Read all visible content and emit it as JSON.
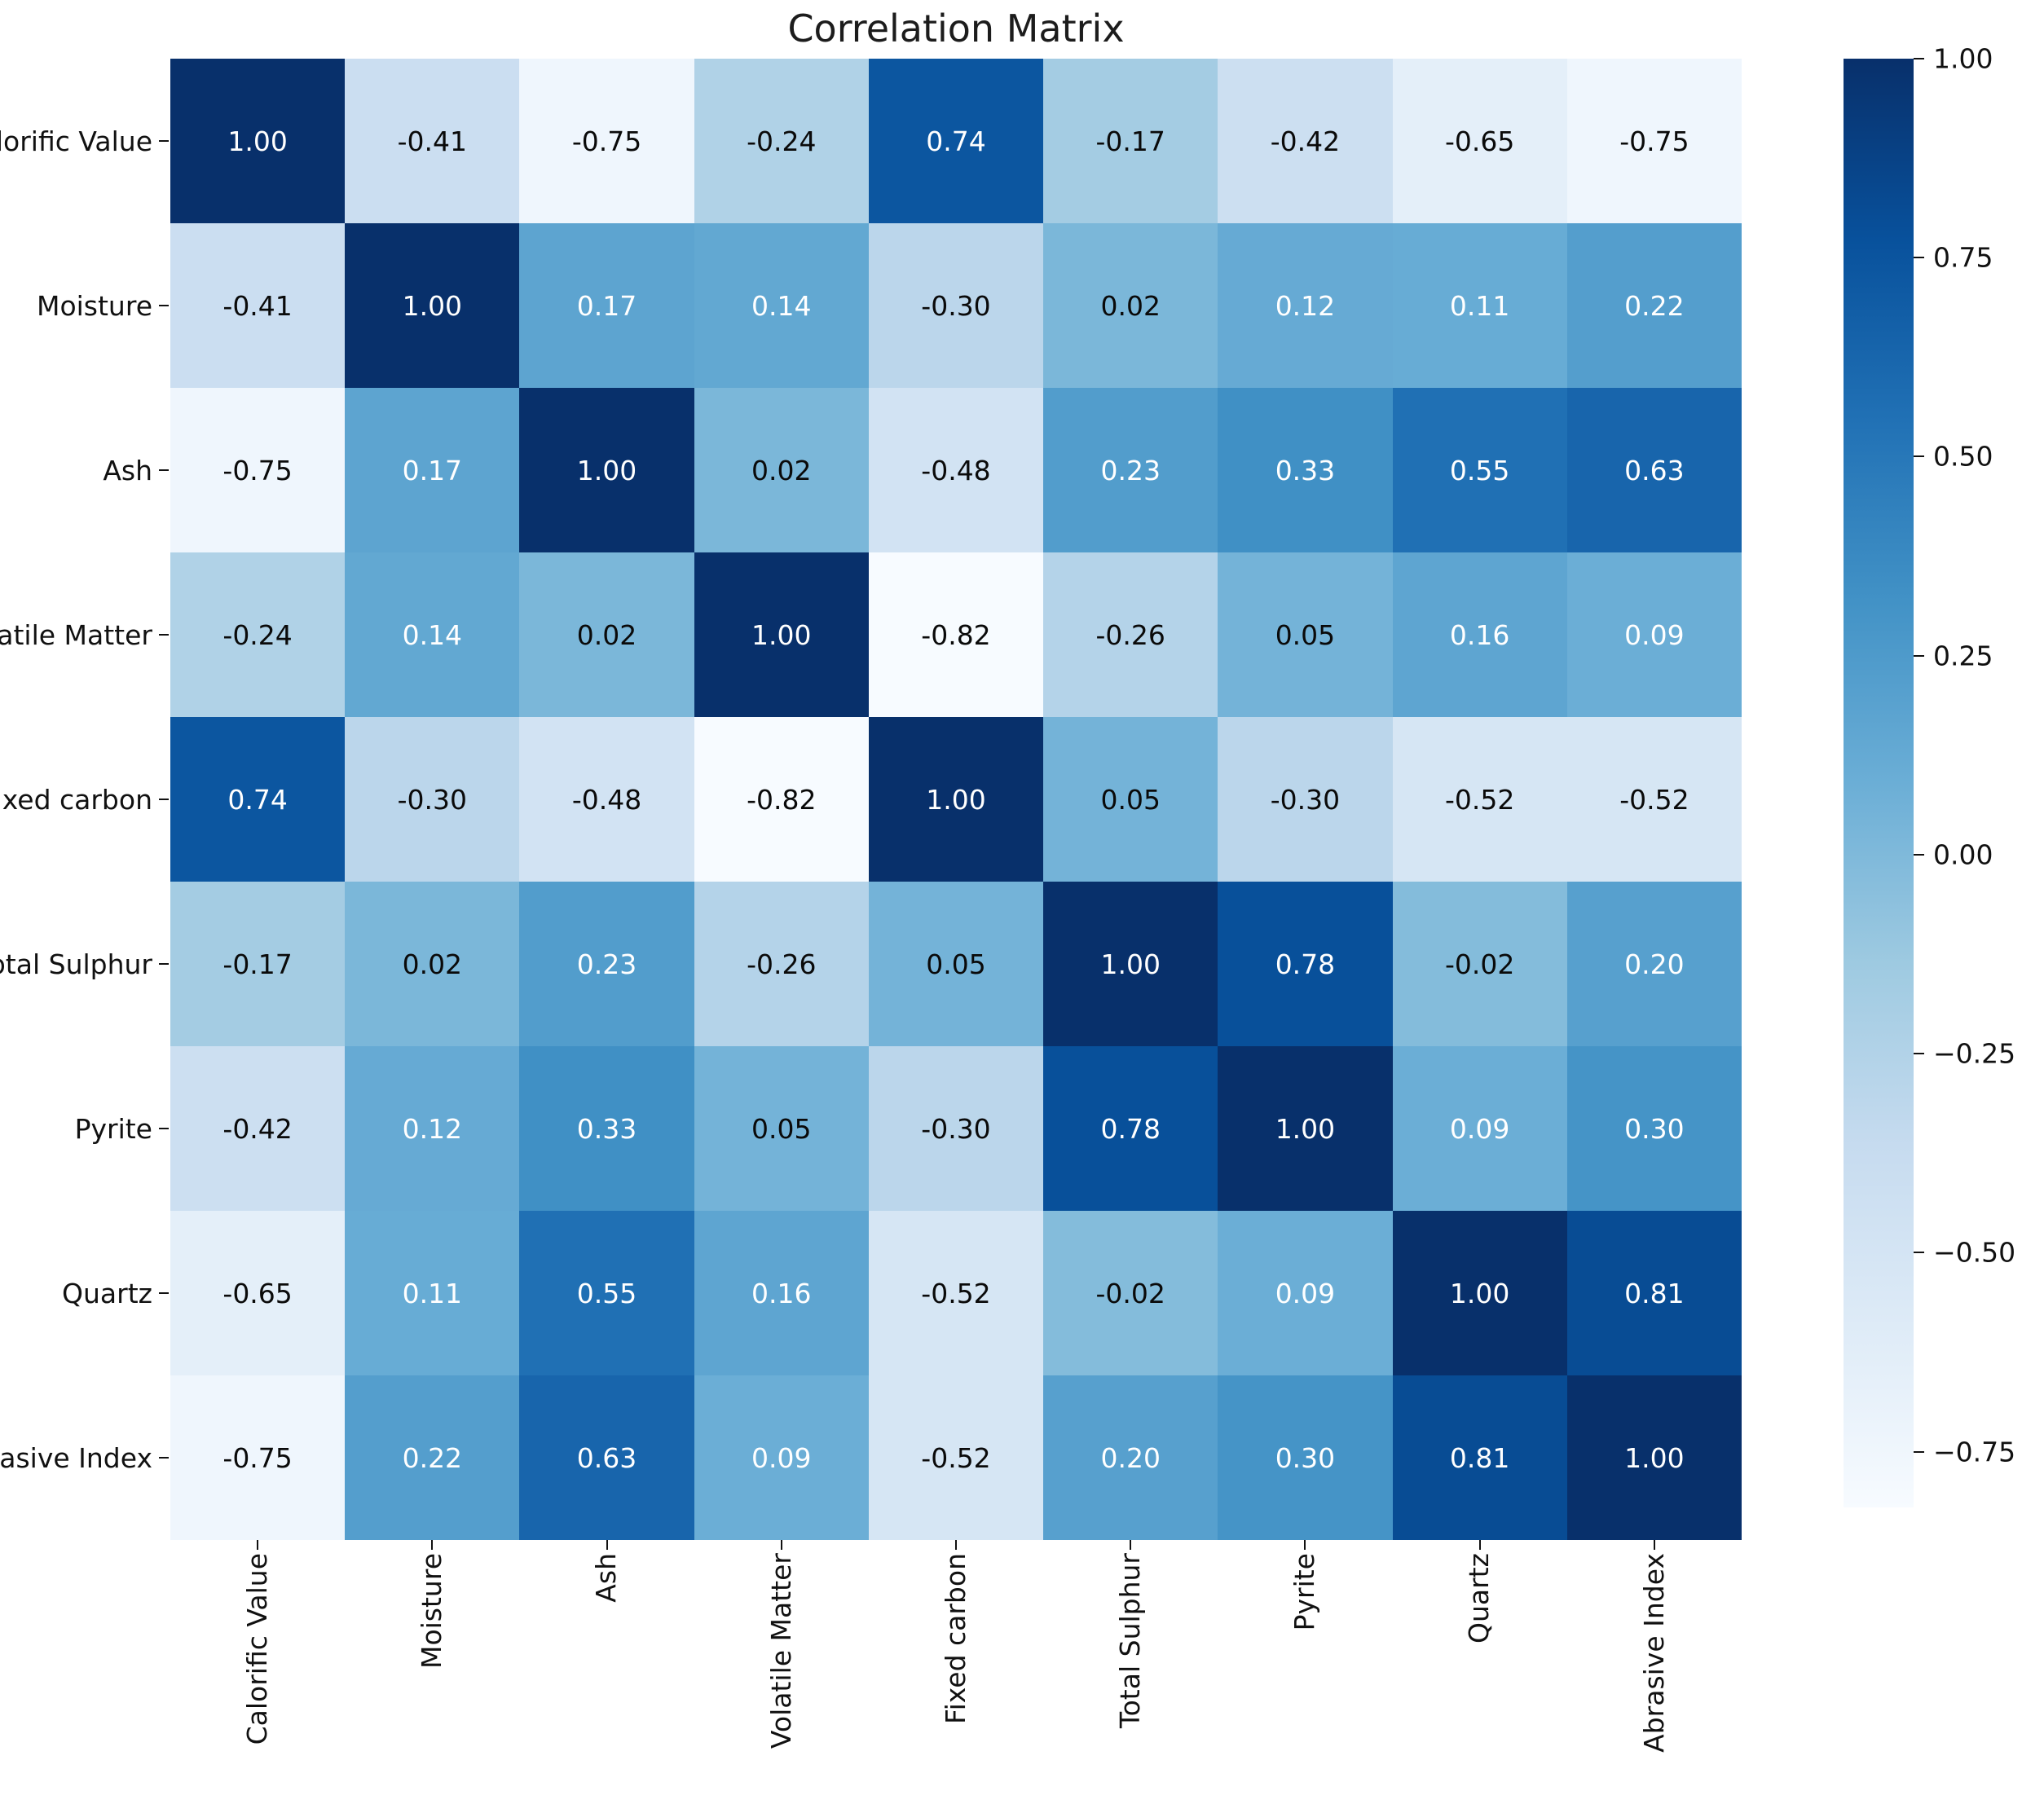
{
  "chart_data": {
    "type": "heatmap",
    "title": "Correlation Matrix",
    "labels": [
      "Calorific Value",
      "Moisture",
      "Ash",
      "Volatile Matter",
      "Fixed carbon",
      "Total Sulphur",
      "Pyrite",
      "Quartz",
      "Abrasive Index"
    ],
    "matrix": [
      [
        1.0,
        -0.41,
        -0.75,
        -0.24,
        0.74,
        -0.17,
        -0.42,
        -0.65,
        -0.75
      ],
      [
        -0.41,
        1.0,
        0.17,
        0.14,
        -0.3,
        0.02,
        0.12,
        0.11,
        0.22
      ],
      [
        -0.75,
        0.17,
        1.0,
        0.02,
        -0.48,
        0.23,
        0.33,
        0.55,
        0.63
      ],
      [
        -0.24,
        0.14,
        0.02,
        1.0,
        -0.82,
        -0.26,
        0.05,
        0.16,
        0.09
      ],
      [
        0.74,
        -0.3,
        -0.48,
        -0.82,
        1.0,
        0.05,
        -0.3,
        -0.52,
        -0.52
      ],
      [
        -0.17,
        0.02,
        0.23,
        -0.26,
        0.05,
        1.0,
        0.78,
        -0.02,
        0.2
      ],
      [
        -0.42,
        0.12,
        0.33,
        0.05,
        -0.3,
        0.78,
        1.0,
        0.09,
        0.3
      ],
      [
        -0.65,
        0.11,
        0.55,
        0.16,
        -0.52,
        -0.02,
        0.09,
        1.0,
        0.81
      ],
      [
        -0.75,
        0.22,
        0.63,
        0.09,
        -0.52,
        0.2,
        0.3,
        0.81,
        1.0
      ]
    ],
    "vmin": -0.82,
    "vmax": 1.0,
    "value_decimals": 2,
    "grid": false,
    "legend_position": "right-colorbar",
    "colormap": {
      "name": "Blues",
      "stops": [
        {
          "t": 0.0,
          "color": "#f7fbff"
        },
        {
          "t": 0.125,
          "color": "#deebf7"
        },
        {
          "t": 0.25,
          "color": "#c6dbef"
        },
        {
          "t": 0.375,
          "color": "#9ecae1"
        },
        {
          "t": 0.5,
          "color": "#6baed6"
        },
        {
          "t": 0.625,
          "color": "#4292c6"
        },
        {
          "t": 0.75,
          "color": "#2171b5"
        },
        {
          "t": 0.875,
          "color": "#08519c"
        },
        {
          "t": 1.0,
          "color": "#08306b"
        }
      ]
    },
    "colorbar": {
      "tick_values": [
        1.0,
        0.75,
        0.5,
        0.25,
        0.0,
        -0.25,
        -0.5,
        -0.75
      ],
      "tick_labels": [
        "1.00",
        "0.75",
        "0.50",
        "0.25",
        "0.00",
        "−0.25",
        "−0.50",
        "−0.75"
      ]
    },
    "annotation_text_colors": {
      "on_dark_cell": "#ffffff",
      "on_light_cell": "#0a0a0a"
    },
    "axis_text_color": "#111111",
    "background_color": "#ffffff"
  }
}
